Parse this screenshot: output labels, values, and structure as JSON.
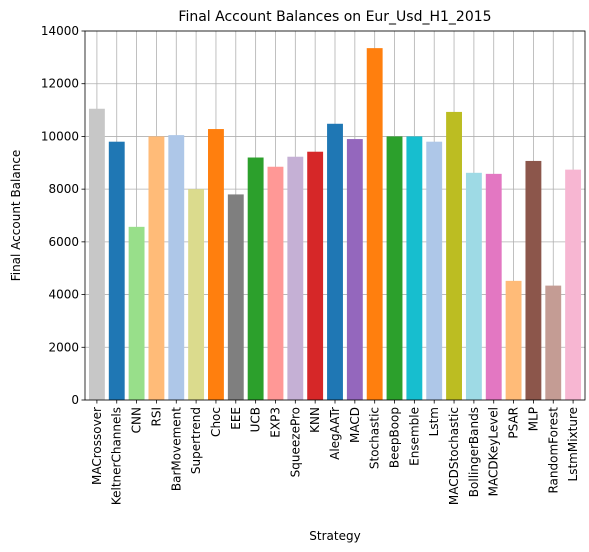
{
  "chart_data": {
    "type": "bar",
    "title": "Final Account Balances on Eur_Usd_H1_2015",
    "xlabel": "Strategy",
    "ylabel": "Final Account Balance",
    "ylim": [
      0,
      14000
    ],
    "yticks": [
      "0",
      "2000",
      "4000",
      "6000",
      "8000",
      "10000",
      "12000",
      "14000"
    ],
    "grid": true,
    "categories": [
      "MACrossover",
      "KeltnerChannels",
      "CNN",
      "RSI",
      "BarMovement",
      "Supertrend",
      "Choc",
      "EEE",
      "UCB",
      "EXP3",
      "SqueezePro",
      "KNN",
      "AlegAATr",
      "MACD",
      "Stochastic",
      "BeepBoop",
      "Ensemble",
      "Lstm",
      "MACDStochastic",
      "BollingerBands",
      "MACDKeyLevel",
      "PSAR",
      "MLP",
      "RandomForest",
      "LstmMixture"
    ],
    "values": [
      11050,
      9800,
      6570,
      10000,
      10050,
      8000,
      10280,
      7800,
      9200,
      8850,
      9230,
      9420,
      10480,
      9900,
      13350,
      10000,
      10000,
      9800,
      10930,
      8620,
      8580,
      4520,
      9070,
      4340,
      8740
    ],
    "colors": [
      "#c7c7c7",
      "#1f77b4",
      "#98df8a",
      "#ffbb78",
      "#aec7e8",
      "#dbdb8d",
      "#ff7f0e",
      "#7f7f7f",
      "#2ca02c",
      "#ff9896",
      "#c5b0d5",
      "#d62728",
      "#1f77b4",
      "#9467bd",
      "#ff7f0e",
      "#2ca02c",
      "#17becf",
      "#aec7e8",
      "#bcbd22",
      "#9edae5",
      "#e377c2",
      "#ffbb78",
      "#8c564b",
      "#c49c94",
      "#f7b6d2"
    ]
  }
}
